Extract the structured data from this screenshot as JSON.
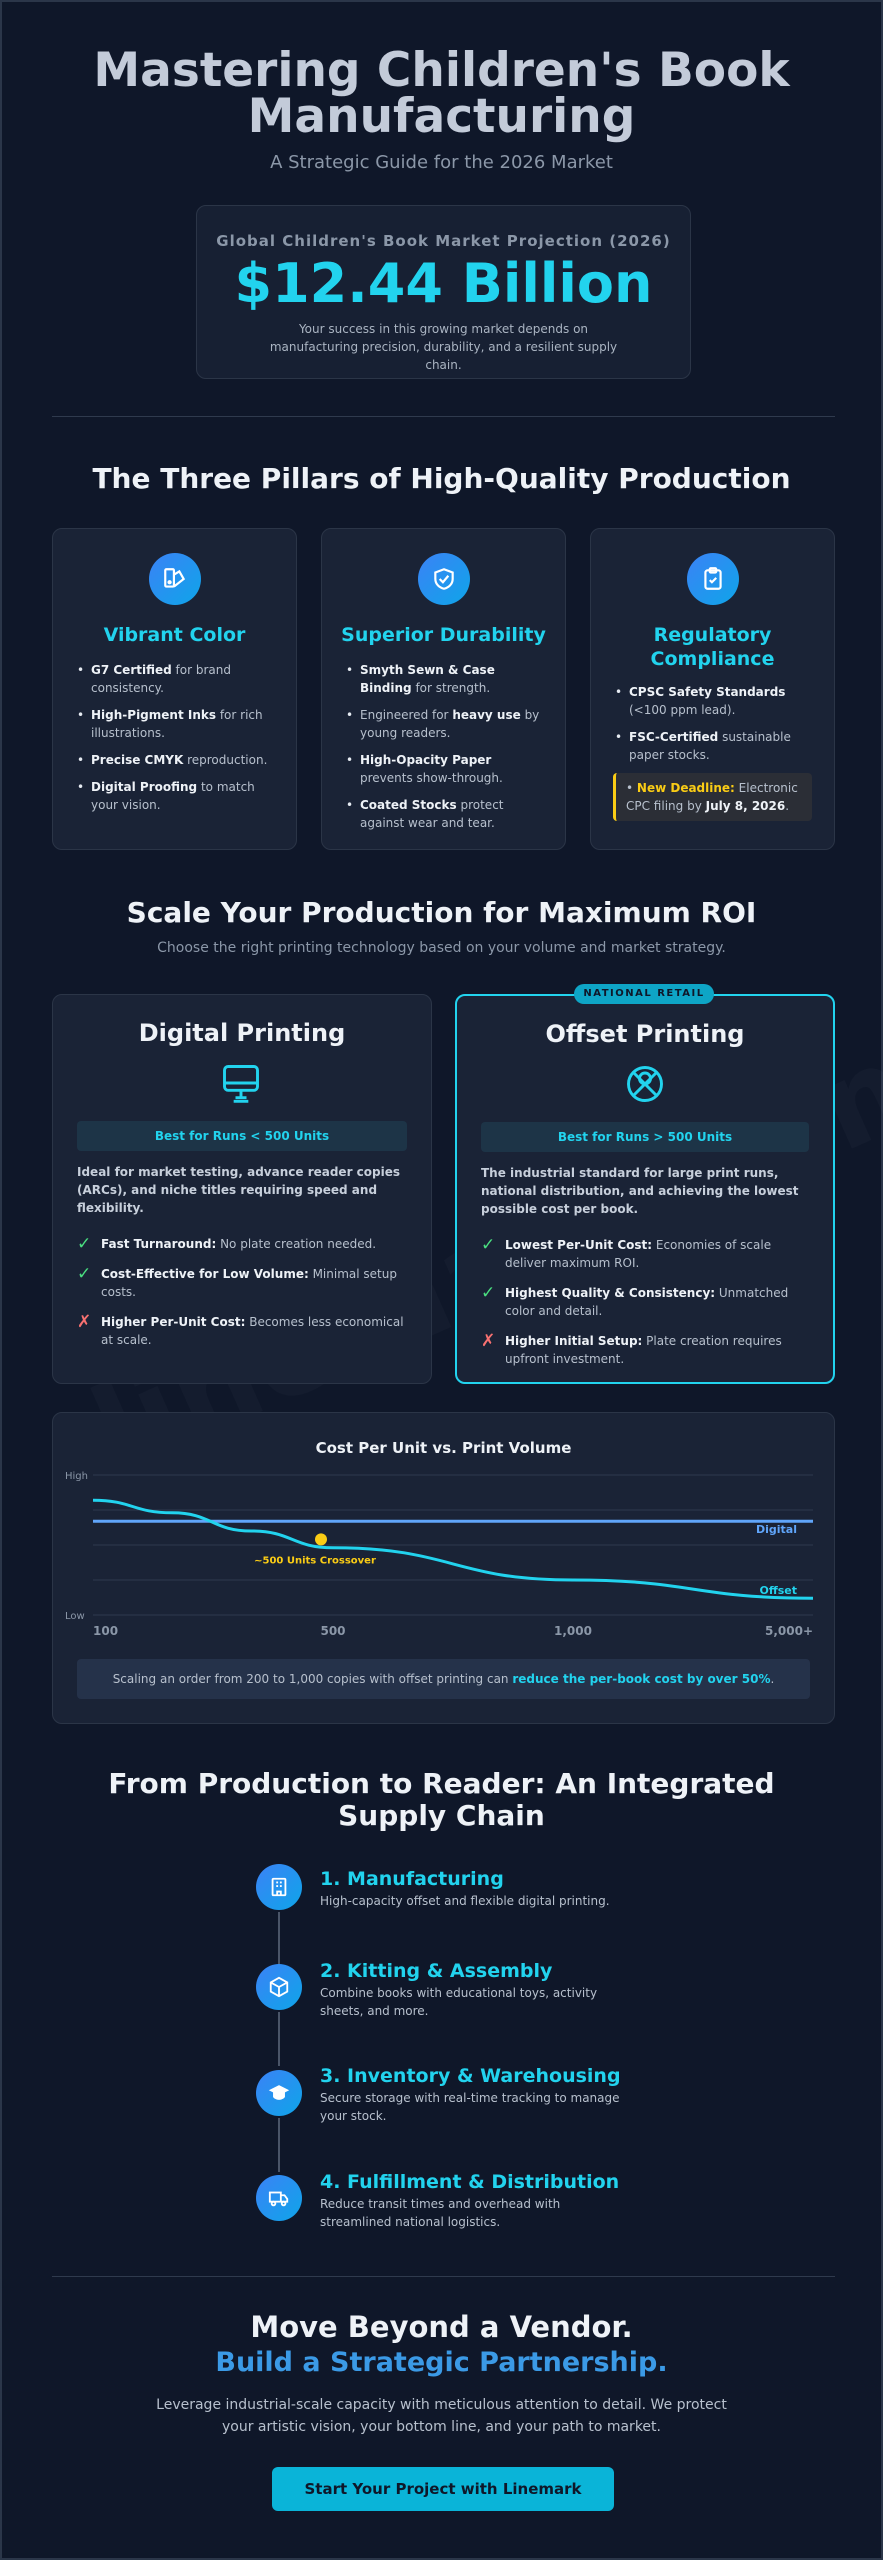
{
  "hero": {
    "title": "Mastering Children's Book Manufacturing",
    "subtitle": "A Strategic Guide for the 2026 Market"
  },
  "stat": {
    "label": "Global Children's Book Market Projection (2026)",
    "value": "$12.44 Billion",
    "note": "Your success in this growing market depends on manufacturing precision, durability, and a resilient supply chain."
  },
  "pillars": {
    "heading": "The Three Pillars of High-Quality Production",
    "items": [
      {
        "title": "Vibrant Color",
        "icon": "palette-icon",
        "bullets": [
          {
            "strong": "G7 Certified",
            "rest": " for brand consistency."
          },
          {
            "strong": "High-Pigment Inks",
            "rest": " for rich illustrations."
          },
          {
            "strong": "Precise CMYK",
            "rest": " reproduction."
          },
          {
            "strong": "Digital Proofing",
            "rest": " to match your vision."
          }
        ]
      },
      {
        "title": "Superior Durability",
        "icon": "shield-check-icon",
        "bullets": [
          {
            "strong": "Smyth Sewn & Case Binding",
            "rest": " for strength."
          },
          {
            "pre": "Engineered for ",
            "strong": "heavy use",
            "rest": " by young readers."
          },
          {
            "strong": "High-Opacity Paper",
            "rest": " prevents show-through."
          },
          {
            "strong": "Coated Stocks",
            "rest": " protect against wear and tear."
          }
        ]
      },
      {
        "title": "Regulatory Compliance",
        "icon": "clipboard-check-icon",
        "bullets": [
          {
            "strong": "CPSC Safety Standards",
            "rest": " (<100 ppm lead)."
          },
          {
            "strong": "FSC-Certified",
            "rest": " sustainable paper stocks."
          }
        ],
        "deadline": {
          "label": "New Deadline:",
          "text": " Electronic CPC filing by ",
          "date": "July 8, 2026",
          "end": "."
        }
      }
    ]
  },
  "scale": {
    "heading": "Scale Your Production for Maximum ROI",
    "subheading": "Choose the right printing technology based on your volume and market strategy."
  },
  "digital": {
    "title": "Digital Printing",
    "icon": "monitor-icon",
    "bestfor": "Best for Runs < 500 Units",
    "desc": "Ideal for market testing, advance reader copies (ARCs), and niche titles requiring speed and flexibility.",
    "items": [
      {
        "mark": "✓",
        "type": "ok",
        "strong": "Fast Turnaround:",
        "rest": " No plate creation needed."
      },
      {
        "mark": "✓",
        "type": "ok",
        "strong": "Cost-Effective for Low Volume:",
        "rest": " Minimal setup costs."
      },
      {
        "mark": "✗",
        "type": "no",
        "strong": "Higher Per-Unit Cost:",
        "rest": " Becomes less economical at scale."
      }
    ]
  },
  "offset": {
    "badge": "NATIONAL RETAIL",
    "title": "Offset Printing",
    "icon": "offset-press-icon",
    "bestfor": "Best for Runs > 500 Units",
    "desc": "The industrial standard for large print runs, national distribution, and achieving the lowest possible cost per book.",
    "items": [
      {
        "mark": "✓",
        "type": "ok",
        "strong": "Lowest Per-Unit Cost:",
        "rest": " Economies of scale deliver maximum ROI."
      },
      {
        "mark": "✓",
        "type": "ok",
        "strong": "Highest Quality & Consistency:",
        "rest": " Unmatched color and detail."
      },
      {
        "mark": "✗",
        "type": "no",
        "strong": "Higher Initial Setup:",
        "rest": " Plate creation requires upfront investment."
      }
    ]
  },
  "chart_data": {
    "type": "line",
    "title": "Cost Per Unit vs. Print Volume",
    "x_ticks": [
      "100",
      "500",
      "1,000",
      "5,000+"
    ],
    "y_ticks": [
      "High",
      "Low"
    ],
    "ylim": [
      0,
      1
    ],
    "grid": true,
    "series": [
      {
        "name": "Digital",
        "color": "#60a5fa",
        "x": [
          0,
          1,
          2,
          3
        ],
        "values": [
          0.67,
          0.67,
          0.67,
          0.67
        ]
      },
      {
        "name": "Offset",
        "color": "#22d3ee",
        "x": [
          0,
          0.33,
          0.66,
          1,
          2,
          3
        ],
        "values": [
          0.82,
          0.73,
          0.6,
          0.48,
          0.25,
          0.12
        ]
      }
    ],
    "annotation": {
      "text": "~500 Units Crossover",
      "x": 0.95,
      "y": 0.41,
      "color": "#facc15"
    },
    "note_pre": "Scaling an order from 200 to 1,000 copies with offset printing can ",
    "note_hl": "reduce the per-book cost by over 50%",
    "note_end": "."
  },
  "supply": {
    "heading": "From Production to Reader: An Integrated Supply Chain",
    "steps": [
      {
        "title": "1. Manufacturing",
        "icon": "factory-icon",
        "desc": "High-capacity offset and flexible digital printing."
      },
      {
        "title": "2. Kitting & Assembly",
        "icon": "box-icon",
        "desc": "Combine books with educational toys, activity sheets, and more."
      },
      {
        "title": "3. Inventory & Warehousing",
        "icon": "warehouse-icon",
        "desc": "Secure storage with real-time tracking to manage your stock."
      },
      {
        "title": "4. Fulfillment & Distribution",
        "icon": "truck-icon",
        "desc": "Reduce transit times and overhead with streamlined national logistics."
      }
    ]
  },
  "cta": {
    "line1": "Move Beyond a Vendor.",
    "line2": "Build a Strategic Partnership.",
    "body": "Leverage industrial-scale capacity with meticulous attention to detail. We protect your artistic vision, your bottom line, and your path to market.",
    "button": "Start Your Project with Linemark"
  },
  "colors": {
    "background": "#0f1729",
    "accent": "#22d3ee",
    "card": "#1a2336",
    "highlight": "#facc15"
  }
}
